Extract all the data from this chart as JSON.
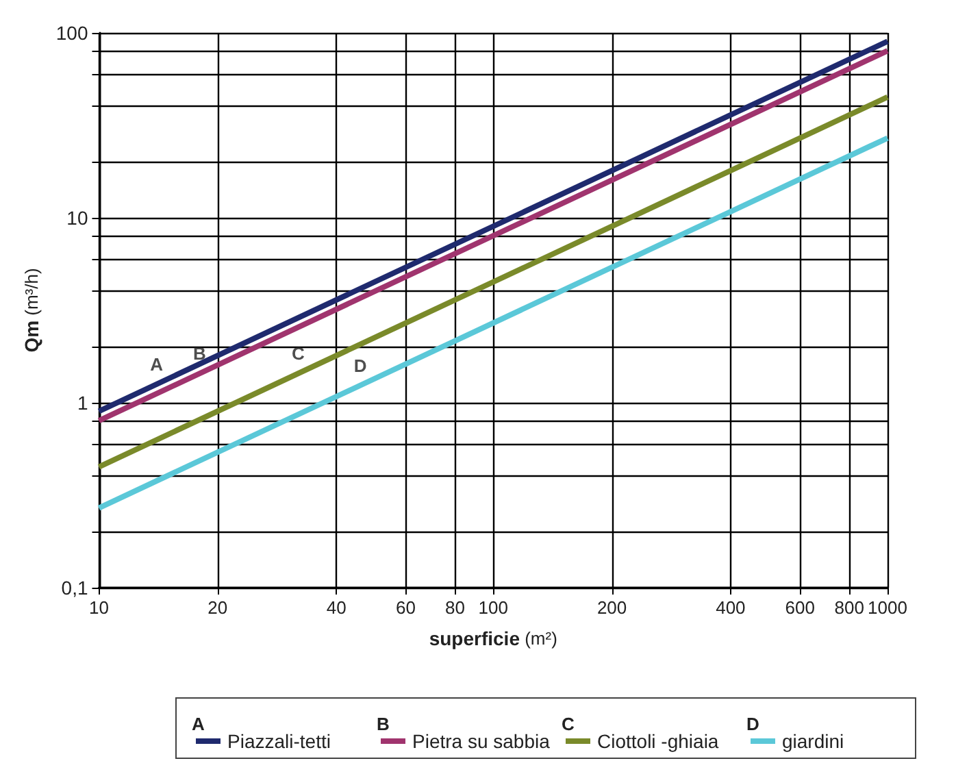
{
  "chart_data": {
    "type": "line",
    "xlabel": "superficie (m²)",
    "ylabel": "Qm (m³/h)",
    "log": "xy",
    "xlim": [
      10,
      1000
    ],
    "ylim": [
      0.1,
      100
    ],
    "xticks": [
      10,
      20,
      40,
      60,
      80,
      100,
      200,
      400,
      600,
      800,
      1000
    ],
    "yticks": [
      {
        "value": 0.1,
        "label": "0,1"
      },
      {
        "value": 0.2,
        "label": null
      },
      {
        "value": 0.4,
        "label": null
      },
      {
        "value": 0.6,
        "label": null
      },
      {
        "value": 0.8,
        "label": null
      },
      1,
      {
        "value": 2,
        "label": null
      },
      {
        "value": 4,
        "label": null
      },
      {
        "value": 6,
        "label": null
      },
      {
        "value": 8,
        "label": null
      },
      10,
      {
        "value": 20,
        "label": null
      },
      {
        "value": 40,
        "label": null
      },
      {
        "value": 60,
        "label": null
      },
      {
        "value": 80,
        "label": null
      },
      100
    ],
    "grid": true,
    "legend": "bottom",
    "marker": "none",
    "line_style": "solid",
    "x": [
      10,
      1000
    ],
    "series": [
      {
        "name": "Piazzali-tetti",
        "color": "#1f2a6e",
        "values": [
          0.9,
          90
        ]
      },
      {
        "name": "Pietra su sabbia",
        "color": "#a0346e",
        "values": [
          0.8,
          80
        ]
      },
      {
        "name": "Ciottoli -ghiaia",
        "color": "#7a8a2a",
        "values": [
          0.45,
          45
        ]
      },
      {
        "name": "giardini",
        "color": "#5bc8d8",
        "values": [
          0.27,
          27
        ]
      }
    ],
    "annotations": [
      {
        "text": "A",
        "x": 14,
        "y": 1.26
      },
      {
        "text": "B",
        "x": 18,
        "y": 1.44
      },
      {
        "text": "C",
        "x": 32,
        "y": 1.44
      },
      {
        "text": "D",
        "x": 46,
        "y": 1.24
      },
      "A",
      "B",
      "C",
      "D"
    ]
  }
}
